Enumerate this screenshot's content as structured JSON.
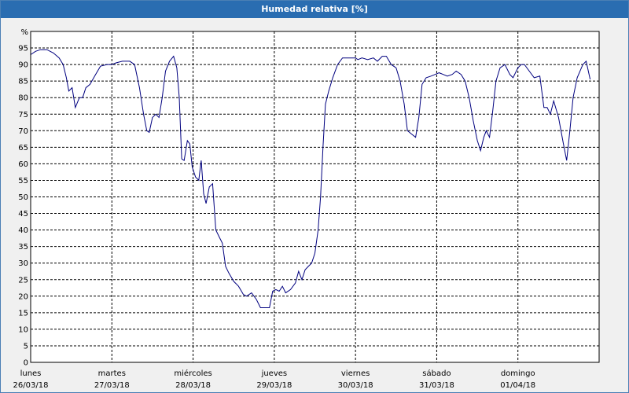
{
  "window": {
    "title": "Humedad relativa [%]"
  },
  "colors": {
    "title_bar": "#2a6db1",
    "line": "#00007f",
    "grid": "#000000",
    "plot_bg": "#ffffff"
  },
  "chart_data": {
    "type": "line",
    "title": "Humedad relativa [%]",
    "ylabel": "%",
    "ylim": [
      0,
      100
    ],
    "y_ticks": [
      0,
      5,
      10,
      15,
      20,
      25,
      30,
      35,
      40,
      45,
      50,
      55,
      60,
      65,
      70,
      75,
      80,
      85,
      90,
      95
    ],
    "grid": true,
    "x_ticks": [
      {
        "day": "lunes",
        "date": "26/03/18"
      },
      {
        "day": "martes",
        "date": "27/03/18"
      },
      {
        "day": "miércoles",
        "date": "28/03/18"
      },
      {
        "day": "jueves",
        "date": "29/03/18"
      },
      {
        "day": "viernes",
        "date": "30/03/18"
      },
      {
        "day": "sábado",
        "date": "31/03/18"
      },
      {
        "day": "domingo",
        "date": "01/04/18"
      }
    ],
    "x_unit": "days since 26/03/18 00:00",
    "series": [
      {
        "name": "Humedad relativa",
        "points": [
          [
            0.0,
            93
          ],
          [
            0.06,
            94
          ],
          [
            0.12,
            94.5
          ],
          [
            0.2,
            94.5
          ],
          [
            0.28,
            93.5
          ],
          [
            0.35,
            92
          ],
          [
            0.4,
            90
          ],
          [
            0.44,
            86
          ],
          [
            0.47,
            82
          ],
          [
            0.51,
            83
          ],
          [
            0.55,
            77
          ],
          [
            0.6,
            80
          ],
          [
            0.64,
            80
          ],
          [
            0.68,
            83
          ],
          [
            0.73,
            84
          ],
          [
            0.8,
            87
          ],
          [
            0.86,
            89.5
          ],
          [
            0.94,
            90
          ],
          [
            1.0,
            90
          ],
          [
            1.05,
            90.5
          ],
          [
            1.13,
            91
          ],
          [
            1.22,
            91
          ],
          [
            1.28,
            90
          ],
          [
            1.34,
            83
          ],
          [
            1.39,
            75
          ],
          [
            1.43,
            70
          ],
          [
            1.46,
            69.5
          ],
          [
            1.5,
            74
          ],
          [
            1.54,
            75
          ],
          [
            1.58,
            74
          ],
          [
            1.62,
            80
          ],
          [
            1.66,
            88
          ],
          [
            1.71,
            91
          ],
          [
            1.76,
            92.5
          ],
          [
            1.8,
            89
          ],
          [
            1.83,
            80
          ],
          [
            1.86,
            61.5
          ],
          [
            1.89,
            61
          ],
          [
            1.93,
            67
          ],
          [
            1.96,
            66
          ],
          [
            1.99,
            59
          ],
          [
            2.03,
            56
          ],
          [
            2.07,
            55
          ],
          [
            2.1,
            61
          ],
          [
            2.13,
            51
          ],
          [
            2.16,
            48
          ],
          [
            2.2,
            53
          ],
          [
            2.24,
            54
          ],
          [
            2.28,
            40
          ],
          [
            2.32,
            38
          ],
          [
            2.36,
            36
          ],
          [
            2.4,
            29
          ],
          [
            2.44,
            27
          ],
          [
            2.5,
            24.5
          ],
          [
            2.56,
            23
          ],
          [
            2.62,
            20.5
          ],
          [
            2.66,
            20
          ],
          [
            2.72,
            21
          ],
          [
            2.78,
            19
          ],
          [
            2.83,
            16.5
          ],
          [
            2.94,
            16.5
          ],
          [
            2.98,
            21.5
          ],
          [
            3.02,
            22
          ],
          [
            3.06,
            21.5
          ],
          [
            3.1,
            23
          ],
          [
            3.14,
            21
          ],
          [
            3.2,
            22
          ],
          [
            3.26,
            24
          ],
          [
            3.3,
            27.5
          ],
          [
            3.34,
            25
          ],
          [
            3.38,
            28
          ],
          [
            3.42,
            29
          ],
          [
            3.46,
            30
          ],
          [
            3.5,
            33
          ],
          [
            3.54,
            40
          ],
          [
            3.57,
            50
          ],
          [
            3.6,
            65
          ],
          [
            3.63,
            78
          ],
          [
            3.67,
            82
          ],
          [
            3.72,
            86
          ],
          [
            3.78,
            90
          ],
          [
            3.84,
            92
          ],
          [
            3.92,
            92
          ],
          [
            4.0,
            92
          ],
          [
            4.03,
            91.5
          ],
          [
            4.08,
            92
          ],
          [
            4.15,
            91.5
          ],
          [
            4.22,
            92
          ],
          [
            4.27,
            91
          ],
          [
            4.33,
            92.5
          ],
          [
            4.38,
            92.5
          ],
          [
            4.44,
            90
          ],
          [
            4.5,
            89
          ],
          [
            4.55,
            85
          ],
          [
            4.6,
            78
          ],
          [
            4.64,
            70
          ],
          [
            4.69,
            69
          ],
          [
            4.74,
            68
          ],
          [
            4.78,
            74
          ],
          [
            4.82,
            84
          ],
          [
            4.87,
            86
          ],
          [
            4.93,
            86.5
          ],
          [
            4.98,
            87
          ],
          [
            5.03,
            87.5
          ],
          [
            5.08,
            87
          ],
          [
            5.13,
            86.5
          ],
          [
            5.19,
            87
          ],
          [
            5.24,
            88
          ],
          [
            5.3,
            87
          ],
          [
            5.35,
            85
          ],
          [
            5.4,
            80
          ],
          [
            5.45,
            73
          ],
          [
            5.5,
            67
          ],
          [
            5.54,
            64
          ],
          [
            5.58,
            68
          ],
          [
            5.61,
            70
          ],
          [
            5.65,
            68
          ],
          [
            5.69,
            76
          ],
          [
            5.73,
            85
          ],
          [
            5.78,
            89
          ],
          [
            5.84,
            90
          ],
          [
            5.9,
            87
          ],
          [
            5.94,
            86
          ],
          [
            6.0,
            89
          ],
          [
            6.04,
            90
          ],
          [
            6.08,
            90
          ],
          [
            6.14,
            88
          ],
          [
            6.2,
            86
          ],
          [
            6.27,
            86.5
          ],
          [
            6.32,
            77
          ],
          [
            6.36,
            77
          ],
          [
            6.4,
            75
          ],
          [
            6.44,
            79
          ],
          [
            6.5,
            74
          ],
          [
            6.56,
            66
          ],
          [
            6.6,
            61
          ],
          [
            6.64,
            70
          ],
          [
            6.68,
            80
          ],
          [
            6.73,
            86
          ],
          [
            6.8,
            90
          ],
          [
            6.84,
            91
          ],
          [
            6.89,
            85.5
          ]
        ]
      }
    ]
  }
}
